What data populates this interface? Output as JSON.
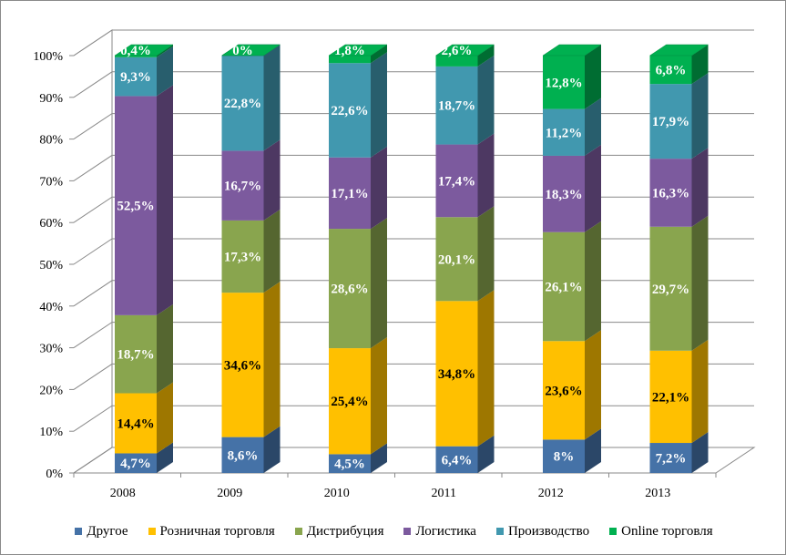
{
  "chart_data": {
    "type": "bar",
    "stacked": true,
    "three_d": true,
    "categories": [
      "2008",
      "2009",
      "2010",
      "2011",
      "2012",
      "2013"
    ],
    "yaxis": {
      "ticks": [
        "0%",
        "10%",
        "20%",
        "30%",
        "40%",
        "50%",
        "60%",
        "70%",
        "80%",
        "90%",
        "100%"
      ],
      "ylim": [
        0,
        100
      ]
    },
    "series": [
      {
        "name": "Другое",
        "color": "#4572a7",
        "values": [
          4.7,
          8.6,
          4.5,
          6.4,
          8.0,
          7.2
        ],
        "labels": [
          "4,7%",
          "8,6%",
          "4,5%",
          "6,4%",
          "8%",
          "7,2%"
        ],
        "label_color": "#ffffff"
      },
      {
        "name": "Розничная торговля",
        "color": "#ffc000",
        "values": [
          14.4,
          34.6,
          25.4,
          34.8,
          23.6,
          22.1
        ],
        "labels": [
          "14,4%",
          "34,6%",
          "25,4%",
          "34,8%",
          "23,6%",
          "22,1%"
        ],
        "label_color": "#000000"
      },
      {
        "name": "Дистрибуция",
        "color": "#89a54e",
        "values": [
          18.7,
          17.3,
          28.6,
          20.1,
          26.1,
          29.7
        ],
        "labels": [
          "18,7%",
          "17,3%",
          "28,6%",
          "20,1%",
          "26,1%",
          "29,7%"
        ],
        "label_color": "#ffffff"
      },
      {
        "name": "Логистика",
        "color": "#7c5a9e",
        "values": [
          52.5,
          16.7,
          17.1,
          17.4,
          18.3,
          16.3
        ],
        "labels": [
          "52,5%",
          "16,7%",
          "17,1%",
          "17,4%",
          "18,3%",
          "16,3%"
        ],
        "label_color": "#ffffff"
      },
      {
        "name": "Производство",
        "color": "#4198af",
        "values": [
          9.3,
          22.8,
          22.6,
          18.7,
          11.2,
          17.9
        ],
        "labels": [
          "9,3%",
          "22,8%",
          "22,6%",
          "18,7%",
          "11,2%",
          "17,9%"
        ],
        "label_color": "#ffffff"
      },
      {
        "name": "Online торговля",
        "color": "#00b050",
        "values": [
          0.4,
          0.0,
          1.8,
          2.6,
          12.8,
          6.8
        ],
        "labels": [
          "0,4%",
          "0%",
          "1,8%",
          "2,6%",
          "12,8%",
          "6,8%"
        ],
        "label_color": "#ffffff"
      }
    ],
    "title": "",
    "xlabel": "",
    "ylabel": "",
    "grid": true,
    "legend_position": "bottom"
  }
}
